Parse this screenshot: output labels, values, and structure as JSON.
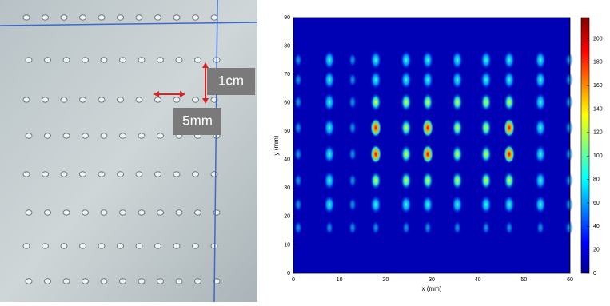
{
  "photo": {
    "annotations": [
      "1cm",
      "5mm"
    ]
  },
  "heatmap": {
    "type": "heatmap",
    "x_label": "x (mm)",
    "y_label": "y (mm)",
    "xlim": [
      0,
      60
    ],
    "xticks": [
      0,
      10,
      20,
      30,
      40,
      50,
      60
    ],
    "ylim": [
      0,
      90
    ],
    "yticks": [
      0,
      10,
      20,
      30,
      40,
      50,
      60,
      70,
      80,
      90
    ],
    "colorbar": {
      "lim": [
        0,
        218
      ],
      "ticks": [
        0,
        20,
        40,
        60,
        80,
        100,
        120,
        140,
        160,
        180,
        200
      ]
    }
  }
}
